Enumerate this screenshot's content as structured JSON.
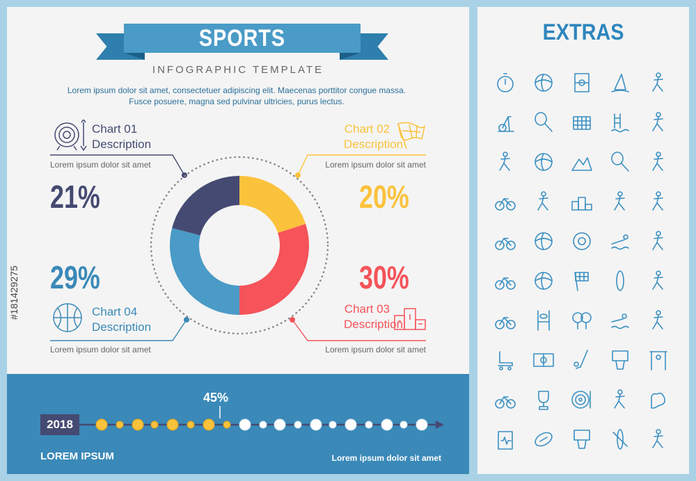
{
  "header": {
    "title": "SPORTS",
    "subtitle": "INFOGRAPHIC TEMPLATE",
    "intro": "Lorem ipsum dolor sit amet, consectetuer adipiscing elit. Maecenas porttitor congue massa. Fusce posuere, magna sed pulvinar ultricies, purus lectus."
  },
  "charts": {
    "c1": {
      "title": "Chart 01",
      "desc": "Description",
      "caption": "Lorem ipsum dolor sit amet",
      "pct": "21%"
    },
    "c2": {
      "title": "Chart 02",
      "desc": "Description",
      "caption": "Lorem ipsum dolor sit amet",
      "pct": "20%"
    },
    "c3": {
      "title": "Chart 03",
      "desc": "Description",
      "caption": "Lorem ipsum dolor sit amet",
      "pct": "30%"
    },
    "c4": {
      "title": "Chart 04",
      "desc": "Description",
      "caption": "Lorem ipsum dolor sit amet",
      "pct": "29%"
    }
  },
  "chart_data": {
    "type": "pie",
    "categories": [
      "Chart 02",
      "Chart 03",
      "Chart 04",
      "Chart 01"
    ],
    "values": [
      20,
      30,
      29,
      21
    ],
    "colors": [
      "#fbc23c",
      "#f6535a",
      "#4a9bc7",
      "#454a72"
    ]
  },
  "timeline": {
    "year": "2018",
    "progress_label": "45%",
    "progress": 0.45,
    "left_label": "LOREM IPSUM",
    "right_label": "Lorem ipsum dolor sit amet"
  },
  "extras": {
    "title": "EXTRAS",
    "icons": [
      "stopwatch-icon",
      "volleyball-icon",
      "soccer-field-icon",
      "windsurfing-icon",
      "ballet-icon",
      "exercise-bike-icon",
      "tennis-racket-icon",
      "goal-net-icon",
      "swimming-pool-icon",
      "cheerleader-icon",
      "skateboarder-icon",
      "baseball-icon",
      "mountain-climbing-icon",
      "badminton-icon",
      "dancer-icon",
      "bicycle-icon",
      "fencing-icon",
      "podium-icon",
      "surfer-icon",
      "runner-icon",
      "cyclist-icon",
      "basketball-icon",
      "billiard-ball-icon",
      "swimmer-icon",
      "soccer-player-icon",
      "bike-icon",
      "soccer-ball-icon",
      "checkered-flag-icon",
      "surfboard-icon",
      "karate-icon",
      "atv-icon",
      "rugby-goal-icon",
      "ping-pong-icon",
      "swimming-icon",
      "golfer-icon",
      "roller-skate-icon",
      "field-icon",
      "golf-club-icon",
      "basketball-hoop-icon",
      "pull-up-bar-icon",
      "road-cyclist-icon",
      "trophy-icon",
      "archery-target-icon",
      "kite-surfing-icon",
      "arm-muscle-icon",
      "health-clipboard-icon",
      "football-icon",
      "hoop-net-icon",
      "kayak-icon",
      "gymnast-icon"
    ]
  },
  "side": {
    "stock_id": "#181429275"
  },
  "colors": {
    "navy": "#454a72",
    "yellow": "#fbc23c",
    "red": "#f6535a",
    "blue": "#4a9bc7",
    "icon": "#3a8fc2"
  }
}
